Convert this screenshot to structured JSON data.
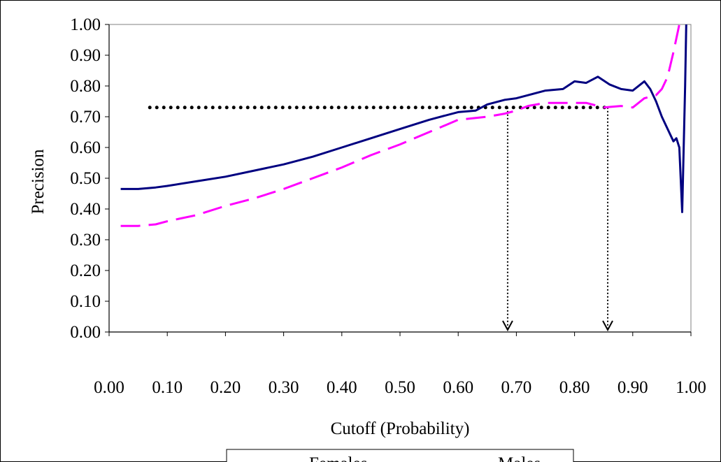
{
  "chart_data": {
    "type": "line",
    "xlabel": "Cutoff (Probability)",
    "ylabel": "Precision",
    "xlim": [
      0,
      1
    ],
    "ylim": [
      0,
      1
    ],
    "xticks": [
      "0.00",
      "0.10",
      "0.20",
      "0.30",
      "0.40",
      "0.50",
      "0.60",
      "0.70",
      "0.80",
      "0.90",
      "1.00"
    ],
    "yticks": [
      "0.00",
      "0.10",
      "0.20",
      "0.30",
      "0.40",
      "0.50",
      "0.60",
      "0.70",
      "0.80",
      "0.90",
      "1.00"
    ],
    "grid": false,
    "legend_position": "bottom",
    "series": [
      {
        "name": "Females",
        "color": "#ff00ff",
        "style": "dashed",
        "x": [
          0.02,
          0.05,
          0.08,
          0.1,
          0.15,
          0.2,
          0.25,
          0.3,
          0.35,
          0.4,
          0.45,
          0.5,
          0.55,
          0.6,
          0.65,
          0.68,
          0.7,
          0.72,
          0.75,
          0.77,
          0.8,
          0.82,
          0.85,
          0.88,
          0.9,
          0.92,
          0.94,
          0.95,
          0.96,
          0.97,
          0.98,
          0.99
        ],
        "y": [
          0.345,
          0.345,
          0.35,
          0.36,
          0.38,
          0.41,
          0.435,
          0.465,
          0.5,
          0.535,
          0.575,
          0.61,
          0.65,
          0.69,
          0.7,
          0.71,
          0.72,
          0.735,
          0.745,
          0.745,
          0.745,
          0.745,
          0.73,
          0.735,
          0.73,
          0.76,
          0.77,
          0.79,
          0.83,
          0.91,
          1.0,
          1.0
        ]
      },
      {
        "name": "Males",
        "color": "#000080",
        "style": "solid",
        "x": [
          0.02,
          0.05,
          0.08,
          0.1,
          0.15,
          0.2,
          0.25,
          0.3,
          0.35,
          0.4,
          0.45,
          0.5,
          0.55,
          0.6,
          0.63,
          0.65,
          0.68,
          0.7,
          0.72,
          0.75,
          0.78,
          0.8,
          0.82,
          0.84,
          0.86,
          0.88,
          0.9,
          0.92,
          0.93,
          0.94,
          0.95,
          0.96,
          0.97,
          0.975,
          0.98,
          0.985,
          0.99,
          0.992
        ],
        "y": [
          0.465,
          0.465,
          0.47,
          0.475,
          0.49,
          0.505,
          0.525,
          0.545,
          0.57,
          0.6,
          0.63,
          0.66,
          0.69,
          0.715,
          0.72,
          0.74,
          0.755,
          0.76,
          0.77,
          0.785,
          0.79,
          0.815,
          0.81,
          0.83,
          0.805,
          0.79,
          0.785,
          0.815,
          0.79,
          0.75,
          0.7,
          0.66,
          0.62,
          0.63,
          0.6,
          0.39,
          0.8,
          1.0
        ]
      }
    ],
    "reference": {
      "threshold": 0.73,
      "cutoffs": [
        0.685,
        0.857
      ]
    }
  }
}
